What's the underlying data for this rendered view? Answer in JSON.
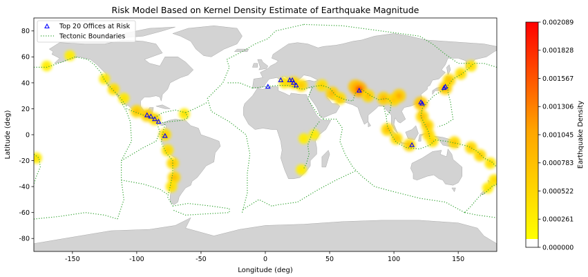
{
  "chart_data": {
    "type": "scatter",
    "title": "Risk Model Based on Kernel Density Estimate of Earthquake Magnitude",
    "xlabel": "Longitude (deg)",
    "ylabel": "Latitude (deg)",
    "xlim": [
      -180,
      180
    ],
    "ylim": [
      -90,
      90
    ],
    "x_ticks": [
      -150,
      -100,
      -50,
      0,
      50,
      100,
      150
    ],
    "y_ticks": [
      -80,
      -60,
      -40,
      -20,
      0,
      20,
      40,
      60,
      80
    ],
    "grid": false,
    "legend": {
      "placement": "top-left",
      "entries": [
        "Top 20 Offices at Risk",
        "Tectonic Boundaries"
      ]
    },
    "colorbar": {
      "label": "Earthquake Density",
      "ticks": [
        "0.000000",
        "0.000261",
        "0.000522",
        "0.000783",
        "0.001045",
        "0.001306",
        "0.001567",
        "0.001828",
        "0.002089"
      ],
      "range": [
        0,
        0.002089
      ],
      "colors": [
        "#ffff00",
        "#ffd200",
        "#ffa500",
        "#ff5200",
        "#ff0000"
      ]
    },
    "series": [
      {
        "name": "Top 20 Offices at Risk",
        "marker": "triangle",
        "color": "#0000ff",
        "points": [
          [
            -92,
            15
          ],
          [
            -89,
            14
          ],
          [
            -86,
            12
          ],
          [
            -83,
            10
          ],
          [
            -78,
            -1
          ],
          [
            2,
            37
          ],
          [
            12,
            42
          ],
          [
            19,
            42
          ],
          [
            21,
            42
          ],
          [
            22,
            40
          ],
          [
            24,
            38
          ],
          [
            73,
            34
          ],
          [
            114,
            -8
          ],
          [
            121,
            25
          ],
          [
            122,
            24
          ],
          [
            139,
            36
          ],
          [
            140,
            37
          ]
        ]
      }
    ],
    "density_hotspots": [
      [
        -125,
        43,
        0.0004
      ],
      [
        -118,
        35,
        0.0006
      ],
      [
        -110,
        28,
        0.0004
      ],
      [
        -100,
        18,
        0.0008
      ],
      [
        -92,
        15,
        0.0009
      ],
      [
        -86,
        12,
        0.0007
      ],
      [
        -78,
        0,
        0.0007
      ],
      [
        -76,
        -12,
        0.0006
      ],
      [
        -72,
        -22,
        0.0007
      ],
      [
        -71,
        -33,
        0.0008
      ],
      [
        -73,
        -40,
        0.0005
      ],
      [
        -63,
        16,
        0.0004
      ],
      [
        -152,
        61,
        0.0003
      ],
      [
        -170,
        53,
        0.0003
      ],
      [
        -178,
        -18,
        0.0004
      ],
      [
        15,
        40,
        0.0005
      ],
      [
        22,
        40,
        0.0008
      ],
      [
        28,
        38,
        0.0007
      ],
      [
        44,
        38,
        0.0006
      ],
      [
        52,
        32,
        0.0009
      ],
      [
        58,
        28,
        0.0007
      ],
      [
        70,
        37,
        0.0012
      ],
      [
        73,
        35,
        0.0016
      ],
      [
        80,
        30,
        0.0008
      ],
      [
        92,
        28,
        0.0009
      ],
      [
        100,
        27,
        0.0008
      ],
      [
        104,
        30,
        0.001
      ],
      [
        95,
        4,
        0.0008
      ],
      [
        102,
        -3,
        0.0007
      ],
      [
        112,
        -8,
        0.0008
      ],
      [
        121,
        24,
        0.0011
      ],
      [
        122,
        14,
        0.0008
      ],
      [
        126,
        7,
        0.0008
      ],
      [
        127,
        0,
        0.0007
      ],
      [
        130,
        -5,
        0.0006
      ],
      [
        140,
        36,
        0.001
      ],
      [
        143,
        42,
        0.0008
      ],
      [
        152,
        47,
        0.0006
      ],
      [
        160,
        53,
        0.0005
      ],
      [
        147,
        -6,
        0.0007
      ],
      [
        160,
        -10,
        0.0007
      ],
      [
        167,
        -16,
        0.0007
      ],
      [
        175,
        -22,
        0.0005
      ],
      [
        178,
        -35,
        0.0005
      ],
      [
        173,
        -41,
        0.0004
      ],
      [
        38,
        0,
        0.0003
      ],
      [
        30,
        -3,
        0.0003
      ],
      [
        28,
        -27,
        0.0003
      ]
    ]
  }
}
